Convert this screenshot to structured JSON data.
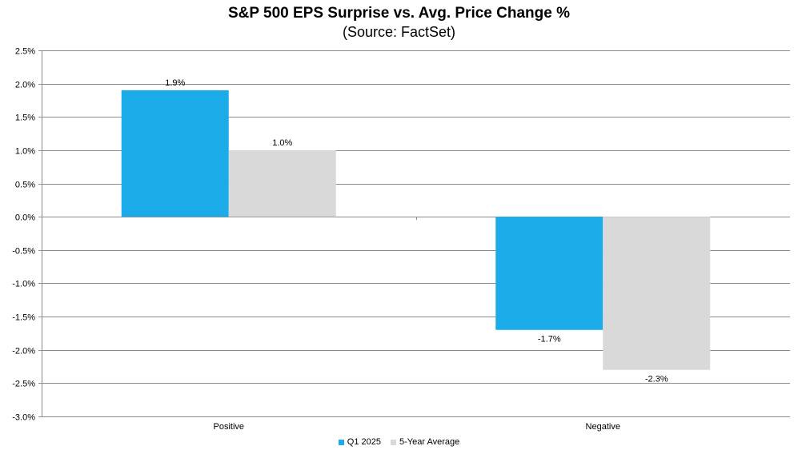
{
  "chart_data": {
    "type": "bar",
    "title": "S&P 500 EPS Surprise vs. Avg. Price Change %",
    "subtitle": "(Source: FactSet)",
    "categories": [
      "Positive",
      "Negative"
    ],
    "series": [
      {
        "name": "Q1 2025",
        "values": [
          1.9,
          -1.7
        ],
        "labels": [
          "1.9%",
          "-1.7%"
        ],
        "color": "#1aabe8"
      },
      {
        "name": "5-Year Average",
        "values": [
          1.0,
          -2.3
        ],
        "labels": [
          "1.0%",
          "-2.3%"
        ],
        "color": "#d9d9d9"
      }
    ],
    "ylim": [
      -3.0,
      2.5
    ],
    "yticks": [
      2.5,
      2.0,
      1.5,
      1.0,
      0.5,
      0.0,
      -0.5,
      -1.0,
      -1.5,
      -2.0,
      -2.5,
      -3.0
    ],
    "ytick_labels": [
      "2.5%",
      "2.0%",
      "1.5%",
      "1.0%",
      "0.5%",
      "0.0%",
      "-0.5%",
      "-1.0%",
      "-1.5%",
      "-2.0%",
      "-2.5%",
      "-3.0%"
    ],
    "grid": true,
    "legend_position": "bottom-center"
  }
}
